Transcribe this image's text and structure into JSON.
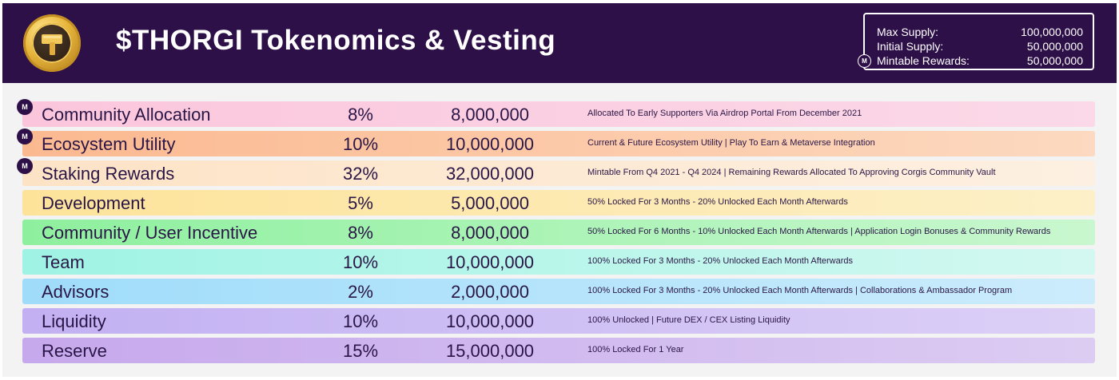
{
  "header": {
    "title": "$THORGI Tokenomics & Vesting",
    "logo_icon": "hammer-coin-icon"
  },
  "supply": [
    {
      "label": "Max Supply:",
      "value": "100,000,000"
    },
    {
      "label": "Initial Supply:",
      "value": "50,000,000"
    },
    {
      "label": "Mintable Rewards:",
      "value": "50,000,000"
    }
  ],
  "badge_text": "M",
  "allocations": [
    {
      "name": "Community Allocation",
      "percent": "8%",
      "amount": "8,000,000",
      "description": "Allocated To Early Supporters Via Airdrop Portal From December 2021",
      "mintable_badge": true,
      "color_start": "#fbc6dc",
      "color_end": "#fbd9e8"
    },
    {
      "name": "Ecosystem Utility",
      "percent": "10%",
      "amount": "10,000,000",
      "description": "Current & Future Ecosystem Utility | Play To Earn & Metaverse Integration",
      "mintable_badge": true,
      "color_start": "#fbb990",
      "color_end": "#fcd9c0"
    },
    {
      "name": "Staking Rewards",
      "percent": "32%",
      "amount": "32,000,000",
      "description": "Mintable From Q4 2021 - Q4 2024 | Remaining Rewards Allocated To Approving Corgis Community Vault",
      "mintable_badge": true,
      "color_start": "#fde3c6",
      "color_end": "#fdf0e2"
    },
    {
      "name": "Development",
      "percent": "5%",
      "amount": "5,000,000",
      "description": "50% Locked For 3 Months - 20% Unlocked Each Month Afterwards",
      "mintable_badge": false,
      "color_start": "#fde39a",
      "color_end": "#fdf0c8"
    },
    {
      "name": "Community / User Incentive",
      "percent": "8%",
      "amount": "8,000,000",
      "description": "50% Locked For 6 Months - 10% Unlocked Each Month Afterwards |   Application Login Bonuses & Community Rewards",
      "mintable_badge": false,
      "color_start": "#8ef09e",
      "color_end": "#c9f7cf"
    },
    {
      "name": "Team",
      "percent": "10%",
      "amount": "10,000,000",
      "description": "100% Locked For 3 Months - 20% Unlocked Each Month Afterwards",
      "mintable_badge": false,
      "color_start": "#9ff3e4",
      "color_end": "#d3f8f1"
    },
    {
      "name": "Advisors",
      "percent": "2%",
      "amount": "2,000,000",
      "description": "100% Locked For 3 Months - 20% Unlocked Each Month Afterwards  |  Collaborations & Ambassador Program",
      "mintable_badge": false,
      "color_start": "#9fdcfa",
      "color_end": "#ccecfc"
    },
    {
      "name": "Liquidity",
      "percent": "10%",
      "amount": "10,000,000",
      "description": "100% Unlocked  |  Future DEX / CEX Listing Liquidity",
      "mintable_badge": false,
      "color_start": "#c2b0f2",
      "color_end": "#dcd0f6"
    },
    {
      "name": "Reserve",
      "percent": "15%",
      "amount": "15,000,000",
      "description": "100% Locked For 1 Year",
      "mintable_badge": false,
      "color_start": "#c6a8ec",
      "color_end": "#dcccf2"
    }
  ]
}
